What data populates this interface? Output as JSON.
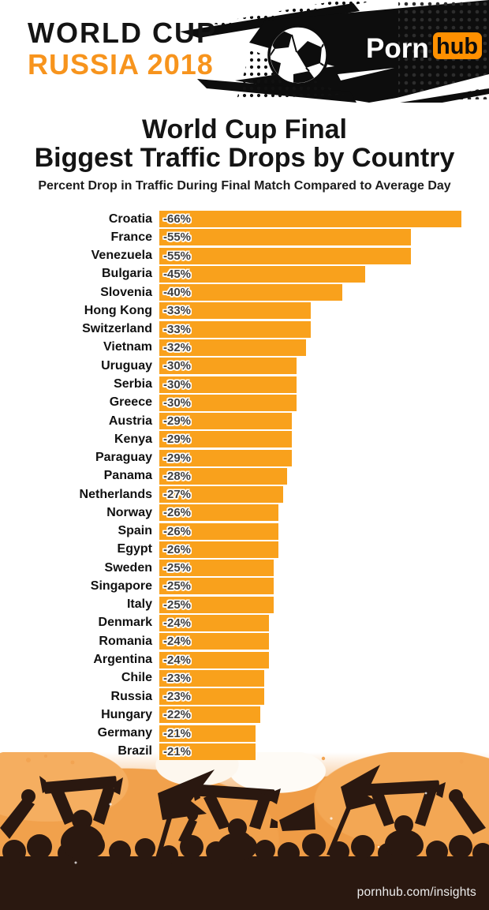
{
  "header": {
    "title_line1": "WORLD CUP",
    "title_line2": "RUSSIA 2018",
    "logo_part1": "Porn",
    "logo_part2": "hub"
  },
  "chart_data": {
    "type": "bar",
    "orientation": "horizontal",
    "title": "World Cup Final Biggest Traffic Drops by Country",
    "title_lines": [
      "World Cup Final",
      "Biggest Traffic Drops by Country"
    ],
    "subtitle": "Percent Drop in Traffic During Final Match Compared to Average Day",
    "xlabel": "",
    "ylabel": "",
    "xlim": [
      0,
      -66
    ],
    "grid": false,
    "legend": false,
    "bar_color": "#F9A11C",
    "categories": [
      "Croatia",
      "France",
      "Venezuela",
      "Bulgaria",
      "Slovenia",
      "Hong Kong",
      "Switzerland",
      "Vietnam",
      "Uruguay",
      "Serbia",
      "Greece",
      "Austria",
      "Kenya",
      "Paraguay",
      "Panama",
      "Netherlands",
      "Norway",
      "Spain",
      "Egypt",
      "Sweden",
      "Singapore",
      "Italy",
      "Denmark",
      "Romania",
      "Argentina",
      "Chile",
      "Russia",
      "Hungary",
      "Germany",
      "Brazil"
    ],
    "values": [
      -66,
      -55,
      -55,
      -45,
      -40,
      -33,
      -33,
      -32,
      -30,
      -30,
      -30,
      -29,
      -29,
      -29,
      -28,
      -27,
      -26,
      -26,
      -26,
      -25,
      -25,
      -25,
      -24,
      -24,
      -24,
      -23,
      -23,
      -22,
      -21,
      -21
    ],
    "value_labels": [
      "-66%",
      "-55%",
      "-55%",
      "-45%",
      "-40%",
      "-33%",
      "-33%",
      "-32%",
      "-30%",
      "-30%",
      "-30%",
      "-29%",
      "-29%",
      "-29%",
      "-28%",
      "-27%",
      "-26%",
      "-26%",
      "-26%",
      "-25%",
      "-25%",
      "-25%",
      "-24%",
      "-24%",
      "-24%",
      "-23%",
      "-23%",
      "-22%",
      "-21%",
      "-21%"
    ]
  },
  "footer": {
    "site_label": "pornhub.com/insights"
  },
  "colors": {
    "accent_orange": "#F7941D",
    "hub_badge_orange": "#FF9000",
    "bar_orange": "#F9A11C",
    "header_black": "#0D0D0D",
    "crowd_silhouette": "#2A1810",
    "watercolor_orange": "#EE9A44"
  }
}
